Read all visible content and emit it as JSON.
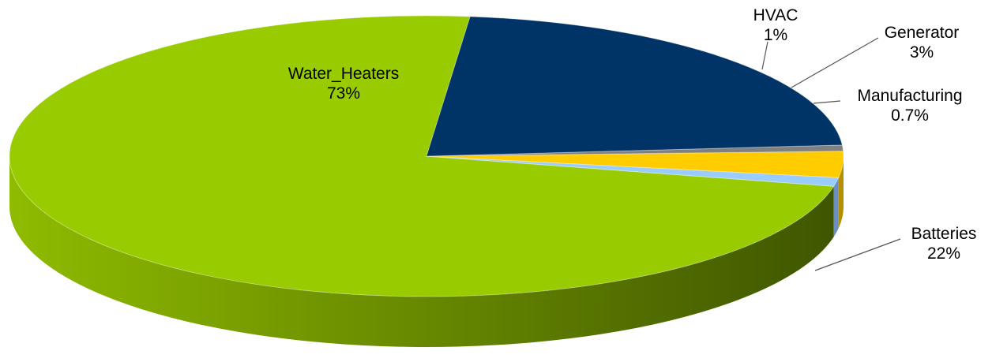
{
  "chart_data": {
    "type": "pie",
    "style": "3d",
    "categories": [
      "Water_Heaters",
      "HVAC",
      "Generator",
      "Manufacturing",
      "Batteries"
    ],
    "values": [
      73,
      1,
      3,
      0.7,
      22
    ],
    "value_labels": [
      "73%",
      "1%",
      "3%",
      "0.7%",
      "22%"
    ],
    "colors": [
      "#99cc00",
      "#99ccff",
      "#ffcc00",
      "#808080",
      "#003366"
    ],
    "title": "",
    "legend": "none"
  }
}
